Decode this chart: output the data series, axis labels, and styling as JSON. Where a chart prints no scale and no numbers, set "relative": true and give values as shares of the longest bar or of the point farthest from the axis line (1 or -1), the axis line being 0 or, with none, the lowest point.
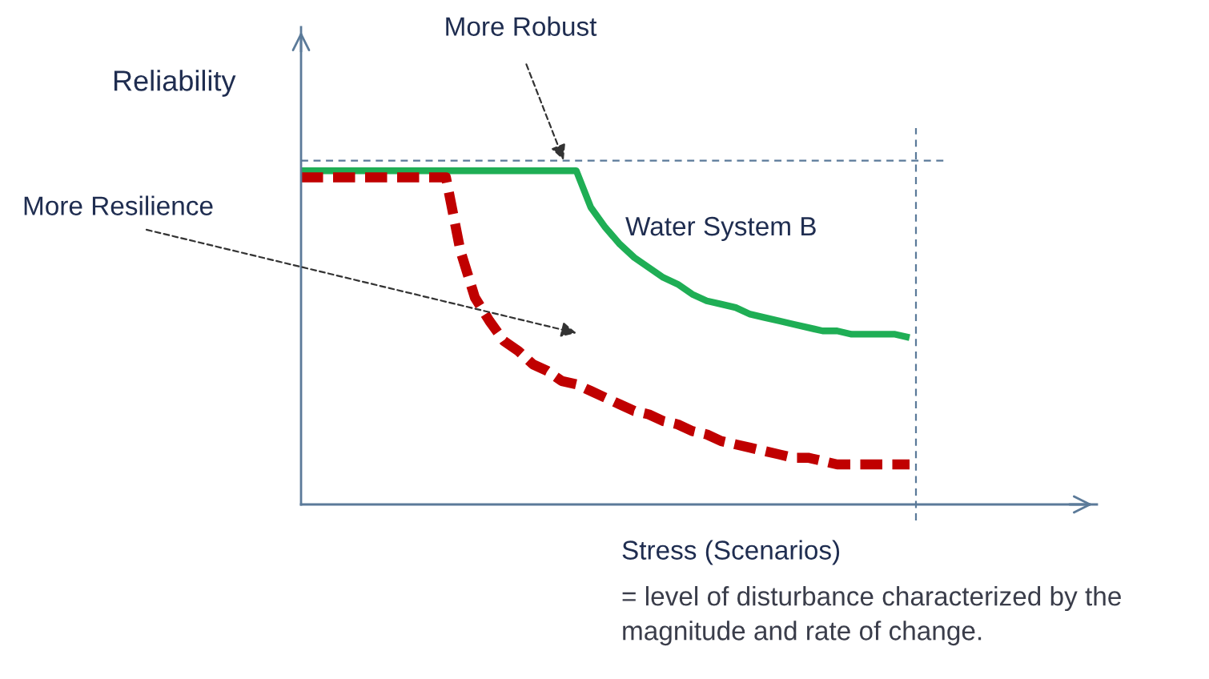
{
  "chart_data": {
    "type": "line",
    "relative": true,
    "xlabel": "Stress (Scenarios)",
    "ylabel": "Reliability",
    "categories": [
      null,
      null,
      null,
      null,
      null,
      null,
      null,
      null,
      null,
      null,
      null,
      null,
      null,
      null,
      null,
      null,
      null,
      null,
      null,
      null,
      null,
      null,
      null,
      null,
      null,
      null,
      null,
      null,
      null,
      null,
      null,
      null,
      null,
      null,
      null,
      null,
      null,
      null,
      null,
      null,
      null,
      null,
      null
    ],
    "series": [
      {
        "name": "Water System B",
        "color": "#1fae55",
        "line_style": "solid",
        "values": [
          1.0,
          1.0,
          1.0,
          1.0,
          1.0,
          1.0,
          1.0,
          1.0,
          1.0,
          1.0,
          1.0,
          1.0,
          1.0,
          1.0,
          1.0,
          1.0,
          1.0,
          1.0,
          1.0,
          1.0,
          0.89,
          0.83,
          0.78,
          0.74,
          0.71,
          0.68,
          0.66,
          0.63,
          0.61,
          0.6,
          0.59,
          0.57,
          0.56,
          0.55,
          0.54,
          0.53,
          0.52,
          0.52,
          0.51,
          0.51,
          0.51,
          0.51,
          0.5
        ]
      },
      {
        "color": "#c00000",
        "line_style": "dashed",
        "values": [
          0.98,
          0.98,
          0.98,
          0.98,
          0.98,
          0.98,
          0.98,
          0.98,
          0.98,
          0.98,
          0.98,
          0.76,
          0.62,
          0.55,
          0.49,
          0.46,
          0.42,
          0.4,
          0.37,
          0.36,
          0.34,
          0.32,
          0.3,
          0.28,
          0.27,
          0.25,
          0.24,
          0.22,
          0.21,
          0.19,
          0.18,
          0.17,
          0.16,
          0.15,
          0.14,
          0.14,
          0.13,
          0.12,
          0.12,
          0.12,
          0.12,
          0.12,
          0.12
        ]
      }
    ],
    "ref_lines": [
      {
        "axis": "y",
        "value": 1.03,
        "color": "#5b7a99",
        "line_style": "dashed"
      }
    ],
    "annotations": [
      "More Robust",
      "More Resilience",
      "= level of disturbance characterized by the magnitude and rate of change."
    ]
  }
}
